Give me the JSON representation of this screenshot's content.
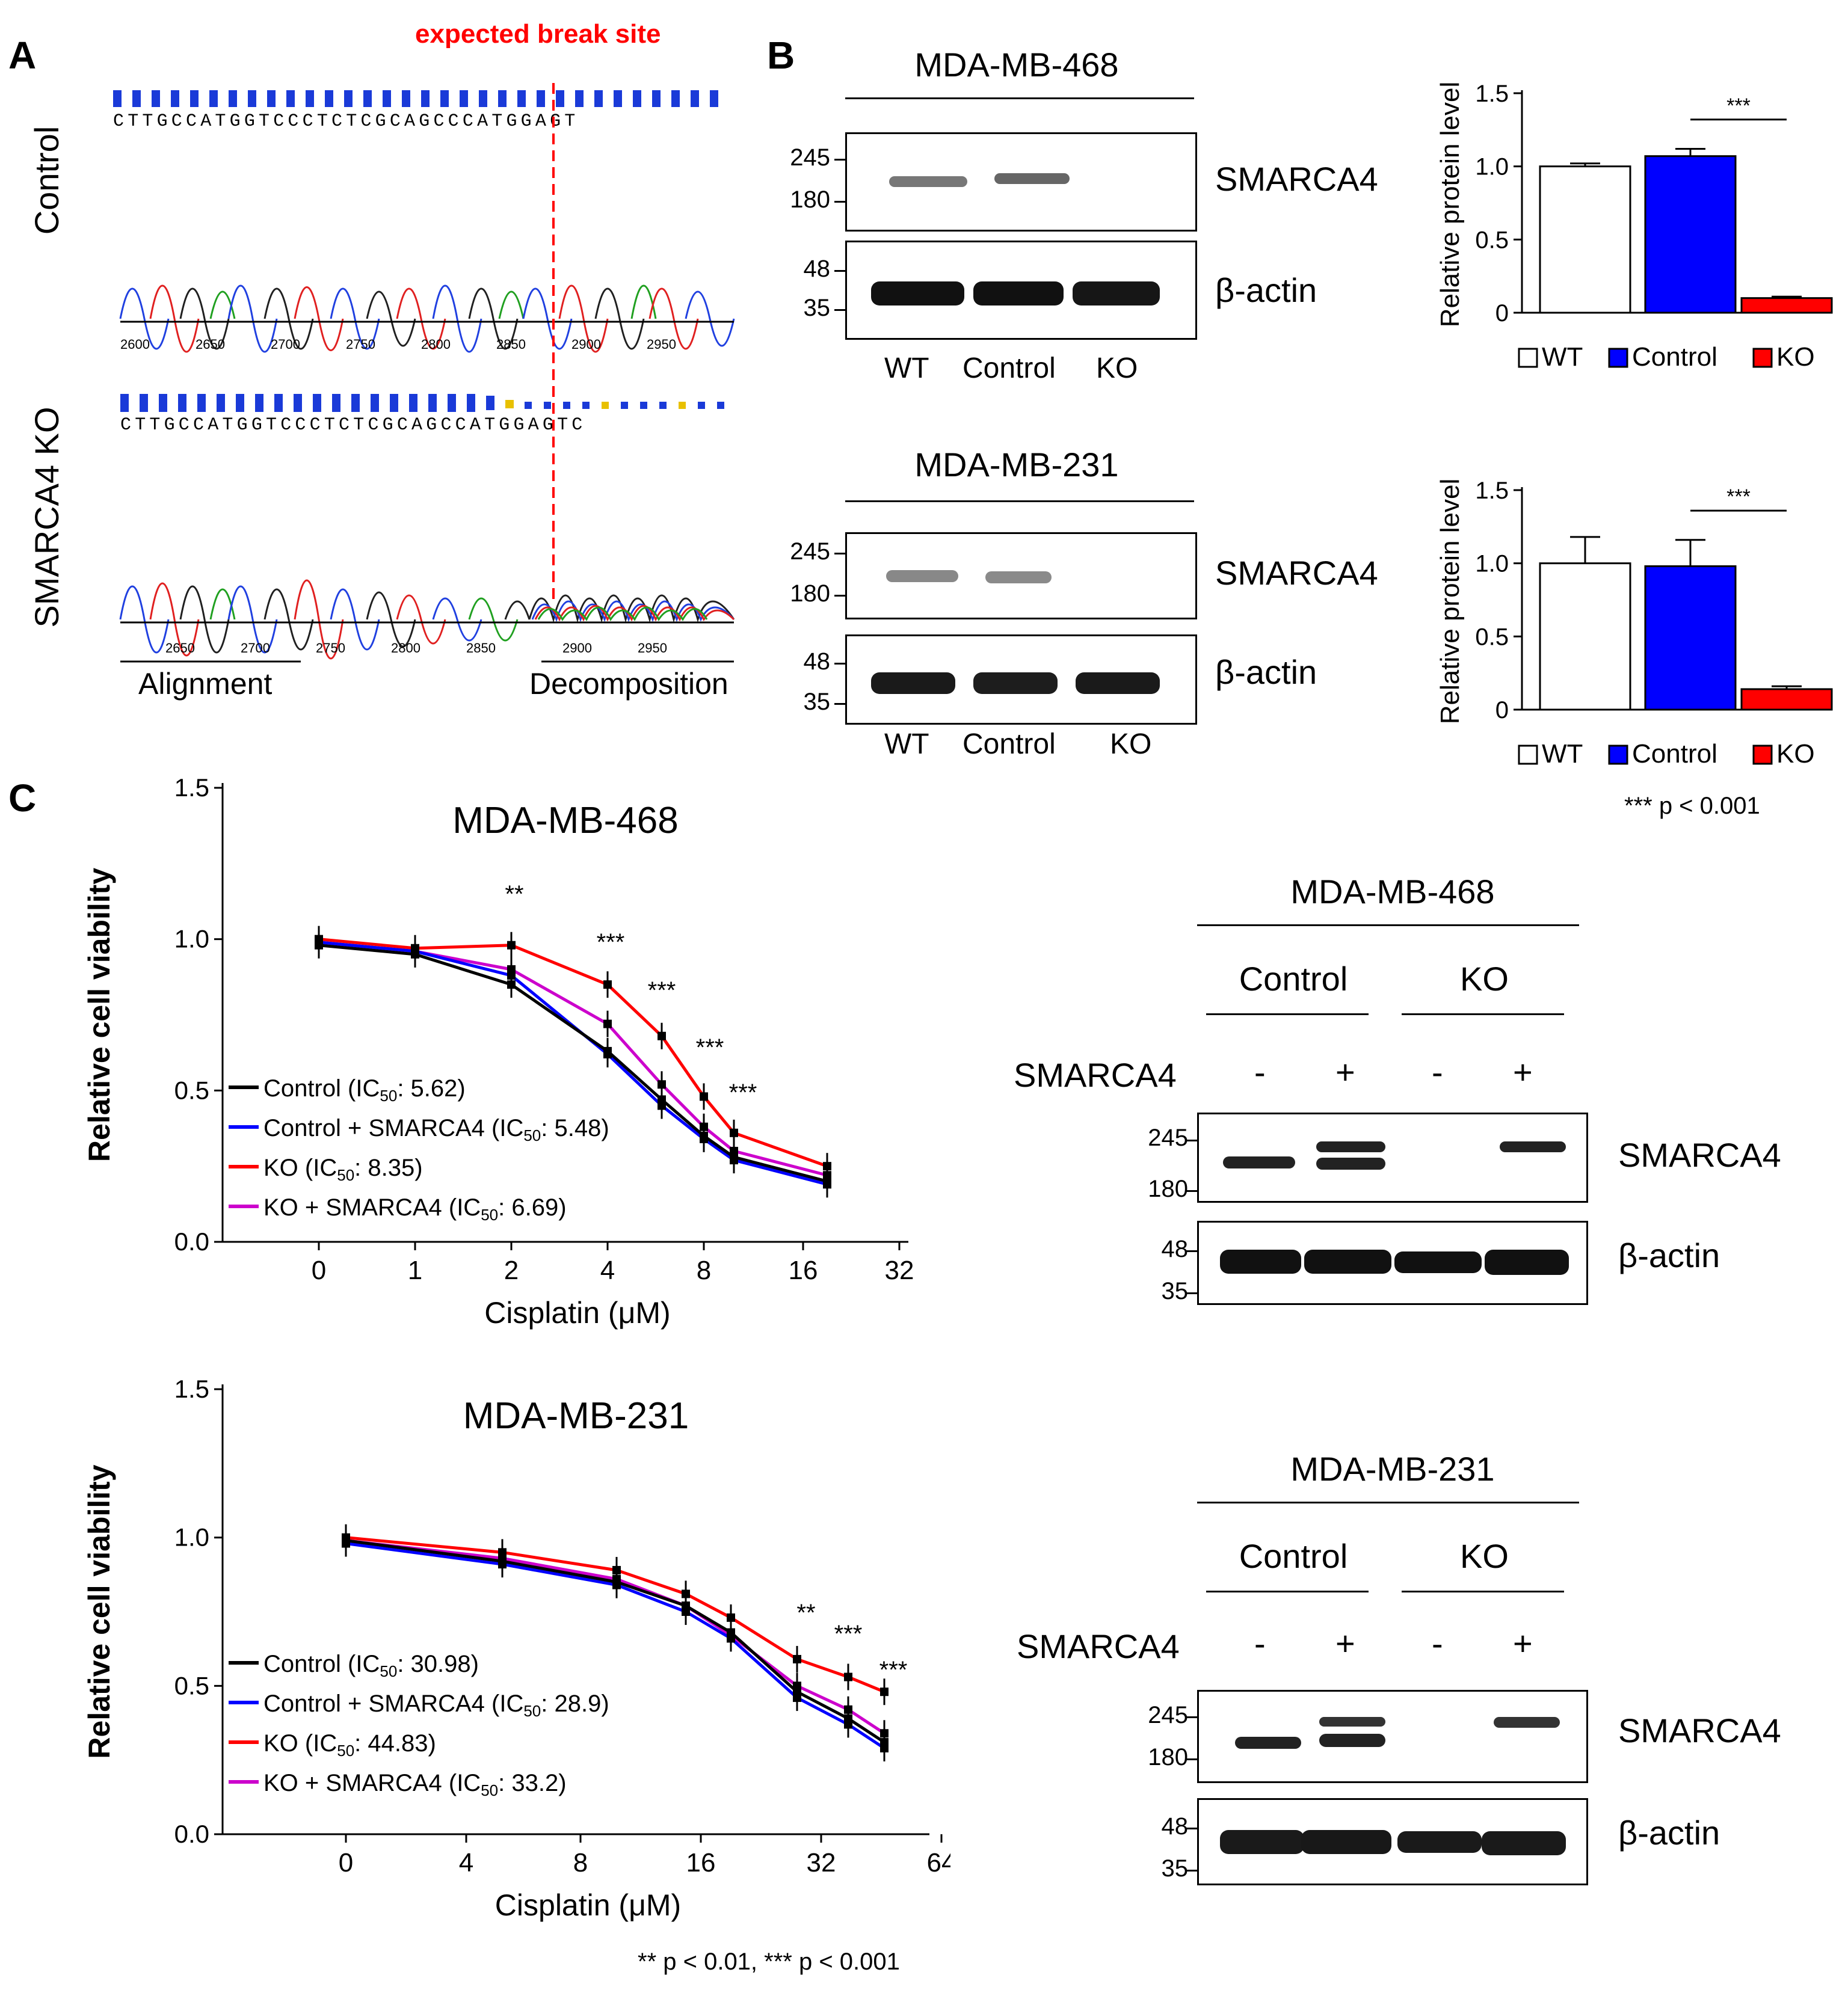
{
  "panel_labels": {
    "a": "A",
    "b": "B",
    "c": "C"
  },
  "panel_a": {
    "break_label": "expected break site",
    "control_label": "Control",
    "ko_label": "SMARCA4 KO",
    "control_seq": "CTTGCCATGGTCCCTCTCGCAGCCCATGGAGT",
    "ko_seq": "CTTGCCATGGTCCCTCTCGCAGCCATGGAGTC",
    "control_positions": [
      "2600",
      "2650",
      "2700",
      "2750",
      "2800",
      "2850",
      "2900",
      "2950"
    ],
    "ko_positions": [
      "2650",
      "2700",
      "2750",
      "2800",
      "2850",
      "2900",
      "2950"
    ],
    "alignment_label": "Alignment",
    "decomposition_label": "Decomposition"
  },
  "panel_b": {
    "blot1_title": "MDA-MB-468",
    "blot2_title": "MDA-MB-231",
    "protein1": "SMARCA4",
    "protein2": "β-actin",
    "mw_top": [
      "245",
      "180"
    ],
    "mw_bottom": [
      "48",
      "35"
    ],
    "lanes": [
      "WT",
      "Control",
      "KO"
    ],
    "legend": [
      "WT",
      "Control",
      "KO"
    ],
    "ylabel": "Relative  protein  level",
    "sig": "***",
    "pnote": "*** p < 0.001"
  },
  "panel_c": {
    "blot1_title": "MDA-MB-468",
    "blot2_title": "MDA-MB-231",
    "group_control": "Control",
    "group_ko": "KO",
    "row_label": "SMARCA4",
    "signs": [
      "-",
      "+",
      "-",
      "+"
    ],
    "protein1": "SMARCA4",
    "protein2": "β-actin",
    "mw_top": [
      "245",
      "180"
    ],
    "mw_bottom": [
      "48",
      "35"
    ],
    "pnote": "** p < 0.01, *** p < 0.001"
  },
  "colors": {
    "control": "#000000",
    "control_smarca4": "#0000ff",
    "ko": "#ff0000",
    "ko_smarca4": "#cc00cc",
    "bar_control": "#0000ff",
    "bar_ko": "#ff0000",
    "break_line": "#ff0000"
  },
  "chart_data": [
    {
      "type": "bar",
      "title": "MDA-MB-468",
      "categories": [
        "WT",
        "Control",
        "KO"
      ],
      "values": [
        1.0,
        1.07,
        0.1
      ],
      "errors": [
        0.02,
        0.05,
        0.01
      ],
      "ylabel": "Relative  protein  level",
      "ylim": [
        0,
        1.5
      ],
      "yticks": [
        "0",
        "0.5",
        "1.0",
        "1.5"
      ],
      "significance": "***"
    },
    {
      "type": "bar",
      "title": "MDA-MB-231",
      "categories": [
        "WT",
        "Control",
        "KO"
      ],
      "values": [
        1.0,
        0.98,
        0.14
      ],
      "errors": [
        0.18,
        0.18,
        0.02
      ],
      "ylabel": "Relative  protein  level",
      "ylim": [
        0,
        1.5
      ],
      "yticks": [
        "0",
        "0.5",
        "1.0",
        "1.5"
      ],
      "significance": "***"
    },
    {
      "type": "line",
      "title": "MDA-MB-468",
      "xlabel": "Cisplatin (μM)",
      "ylabel": "Relative cell viability",
      "xticks": [
        "0",
        "1",
        "2",
        "4",
        "8",
        "16",
        "32"
      ],
      "yticks": [
        "0.0",
        "0.5",
        "1.0",
        "1.5"
      ],
      "ylim": [
        0,
        1.5
      ],
      "x": [
        0,
        1,
        2,
        4,
        6,
        8,
        10,
        20
      ],
      "series": [
        {
          "name": "Control (IC50: 5.62)",
          "ic50": "5.62",
          "values": [
            0.98,
            0.95,
            0.85,
            0.63,
            0.47,
            0.35,
            0.28,
            0.2
          ]
        },
        {
          "name": "Control + SMARCA4 (IC50: 5.48)",
          "ic50": "5.48",
          "values": [
            0.99,
            0.96,
            0.88,
            0.62,
            0.45,
            0.34,
            0.27,
            0.19
          ]
        },
        {
          "name": "KO (IC50: 8.35)",
          "ic50": "8.35",
          "values": [
            1.0,
            0.97,
            0.98,
            0.85,
            0.68,
            0.48,
            0.36,
            0.25
          ]
        },
        {
          "name": "KO + SMARCA4 (IC50: 6.69)",
          "ic50": "6.69",
          "values": [
            0.99,
            0.96,
            0.9,
            0.72,
            0.52,
            0.38,
            0.3,
            0.22
          ]
        }
      ],
      "significance": [
        "**",
        "***",
        "***",
        "***",
        "***"
      ]
    },
    {
      "type": "line",
      "title": "MDA-MB-231",
      "xlabel": "Cisplatin (μM)",
      "ylabel": "Relative cell viability",
      "xticks": [
        "0",
        "4",
        "8",
        "16",
        "32",
        "64"
      ],
      "yticks": [
        "0.0",
        "0.5",
        "1.0",
        "1.5"
      ],
      "ylim": [
        0,
        1.5
      ],
      "x": [
        0,
        5,
        10,
        15,
        20,
        30,
        40,
        50
      ],
      "series": [
        {
          "name": "Control (IC50: 30.98)",
          "ic50": "30.98",
          "values": [
            0.99,
            0.92,
            0.85,
            0.77,
            0.68,
            0.48,
            0.39,
            0.31
          ]
        },
        {
          "name": "Control + SMARCA4 (IC50: 28.9)",
          "ic50": "28.9",
          "values": [
            0.98,
            0.91,
            0.84,
            0.75,
            0.66,
            0.46,
            0.37,
            0.29
          ]
        },
        {
          "name": "KO (IC50: 44.83)",
          "ic50": "44.83",
          "values": [
            1.0,
            0.95,
            0.89,
            0.81,
            0.73,
            0.59,
            0.53,
            0.48
          ]
        },
        {
          "name": "KO + SMARCA4 (IC50: 33.2)",
          "ic50": "33.2",
          "values": [
            0.99,
            0.93,
            0.86,
            0.77,
            0.67,
            0.5,
            0.42,
            0.34
          ]
        }
      ],
      "significance": [
        "**",
        "***",
        "***"
      ]
    }
  ]
}
